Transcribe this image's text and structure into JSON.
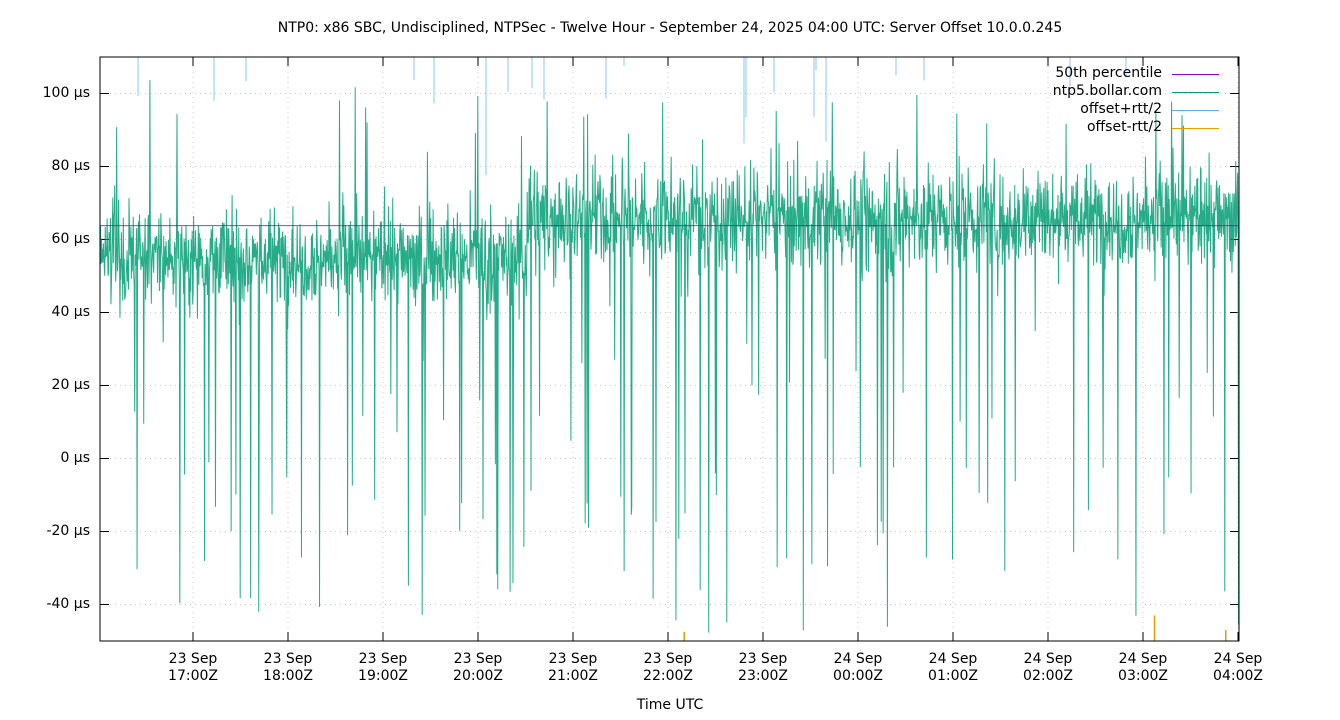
{
  "chart_data": {
    "type": "line",
    "title": "NTP0: x86 SBC, Undisciplined, NTPSec - Twelve Hour - September 24, 2025 04:00 UTC: Server Offset 10.0.0.245",
    "xlabel": "Time UTC",
    "ylabel": "",
    "ylim": [
      -50,
      110
    ],
    "y_unit": "µs",
    "grid": true,
    "legend_position": "top-right inside",
    "yticks": [
      {
        "value": 100,
        "label": "100 µs"
      },
      {
        "value": 80,
        "label": "80 µs"
      },
      {
        "value": 60,
        "label": "60 µs"
      },
      {
        "value": 40,
        "label": "40 µs"
      },
      {
        "value": 20,
        "label": "20 µs"
      },
      {
        "value": 0,
        "label": "0 µs"
      },
      {
        "value": -20,
        "label": "-20 µs"
      },
      {
        "value": -40,
        "label": "-40 µs"
      }
    ],
    "xticks": [
      {
        "date": "23 Sep",
        "time": "17:00Z"
      },
      {
        "date": "23 Sep",
        "time": "18:00Z"
      },
      {
        "date": "23 Sep",
        "time": "19:00Z"
      },
      {
        "date": "23 Sep",
        "time": "20:00Z"
      },
      {
        "date": "23 Sep",
        "time": "21:00Z"
      },
      {
        "date": "23 Sep",
        "time": "22:00Z"
      },
      {
        "date": "23 Sep",
        "time": "23:00Z"
      },
      {
        "date": "24 Sep",
        "time": "00:00Z"
      },
      {
        "date": "24 Sep",
        "time": "01:00Z"
      },
      {
        "date": "24 Sep",
        "time": "02:00Z"
      },
      {
        "date": "24 Sep",
        "time": "03:00Z"
      },
      {
        "date": "24 Sep",
        "time": "04:00Z"
      }
    ],
    "x_range_hours": [
      "16:01Z",
      "04:00Z"
    ],
    "series": [
      {
        "name": "50th percentile",
        "color": "#9400d3",
        "type": "hline",
        "value": 63.8
      },
      {
        "name": "ntp5.bollar.com",
        "color": "#009e73",
        "type": "noise",
        "segments": [
          {
            "from_hour": 0.0,
            "to_hour": 4.5,
            "mean": 55,
            "spread": 12,
            "min": -45,
            "max": 105
          },
          {
            "from_hour": 4.5,
            "to_hour": 12.0,
            "mean": 66,
            "spread": 13,
            "min": -48,
            "max": 100
          }
        ],
        "points": 2400
      },
      {
        "name": "offset+rtt/2",
        "color": "#56b4e9",
        "type": "spikes-top"
      },
      {
        "name": "offset-rtt/2",
        "color": "#e69f00",
        "type": "spikes-bottom",
        "spikes": [
          {
            "hour": 6.15,
            "value": -47.5
          },
          {
            "hour": 11.1,
            "value": -43
          },
          {
            "hour": 11.85,
            "value": -47
          }
        ]
      }
    ]
  }
}
